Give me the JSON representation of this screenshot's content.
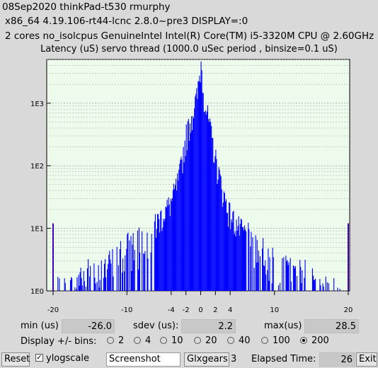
{
  "header": {
    "line1": "08Sep2020 thinkPad-t530 rmurphy",
    "line2": "x86_64  4.19.106-rt44-lcnc  2.8.0~pre3  DISPLAY=:0",
    "line3": "2 cores  no_isolcpus   GenuineIntel  Intel(R) Core(TM) i5-3320M CPU @ 2.60GHz"
  },
  "chart_data": {
    "type": "bar",
    "title": "Latency (uS) servo thread (1000.0 uSec period , binsize=0.1 uS)",
    "xlabel": "",
    "ylabel": "",
    "x_range": [
      -20,
      20
    ],
    "x_ticks": [
      "-20",
      "-10",
      "-4",
      "-2",
      "0",
      "2",
      "4",
      "10",
      "20"
    ],
    "y_scale": "log",
    "y_range": [
      1,
      5000
    ],
    "y_ticks": [
      "1E0",
      "1E1",
      "1E2",
      "1E3"
    ],
    "grid": true,
    "bar_color": "#0000ff",
    "plot_background": "#ecfbec",
    "envelope": [
      [
        -18,
        1
      ],
      [
        -16,
        2
      ],
      [
        -14,
        2
      ],
      [
        -12,
        3
      ],
      [
        -10,
        5
      ],
      [
        -9,
        6
      ],
      [
        -8,
        8
      ],
      [
        -7,
        10
      ],
      [
        -6,
        14
      ],
      [
        -5,
        20
      ],
      [
        -4,
        30
      ],
      [
        -3,
        70
      ],
      [
        -2,
        350
      ],
      [
        -1,
        900
      ],
      [
        -0.5,
        1500
      ],
      [
        0,
        4800
      ],
      [
        0.5,
        1200
      ],
      [
        1,
        600
      ],
      [
        2,
        140
      ],
      [
        3,
        40
      ],
      [
        4,
        18
      ],
      [
        5,
        12
      ],
      [
        6,
        9
      ],
      [
        7,
        7
      ],
      [
        8,
        5
      ],
      [
        9,
        4
      ],
      [
        10,
        3
      ],
      [
        12,
        2
      ],
      [
        14,
        2
      ],
      [
        16,
        1
      ],
      [
        18,
        1
      ]
    ],
    "edge_markers": [
      {
        "x": -20,
        "value": 12
      },
      {
        "x": 20,
        "value": 12
      }
    ],
    "edge_marker_color": "#ff0000"
  },
  "stats": {
    "min_label": "min (us)",
    "min_value": "-26.0",
    "sdev_label": "sdev (us):",
    "sdev_value": "2.2",
    "max_label": "max(us)",
    "max_value": "28.5"
  },
  "bins": {
    "label": "Display +/- bins:",
    "options": [
      "2",
      "4",
      "10",
      "20",
      "40",
      "100",
      "200"
    ],
    "selected": "200"
  },
  "toolbar": {
    "reset_label": "Reset",
    "ylogscale_label": "ylogscale",
    "ylogscale_checked": true,
    "screenshot_label": "Screenshot",
    "glxgears_label": "Glxgears",
    "glxgears_count": "3",
    "elapsed_label": "Elapsed Time:",
    "elapsed_value": "26",
    "exit_label": "Exit"
  }
}
